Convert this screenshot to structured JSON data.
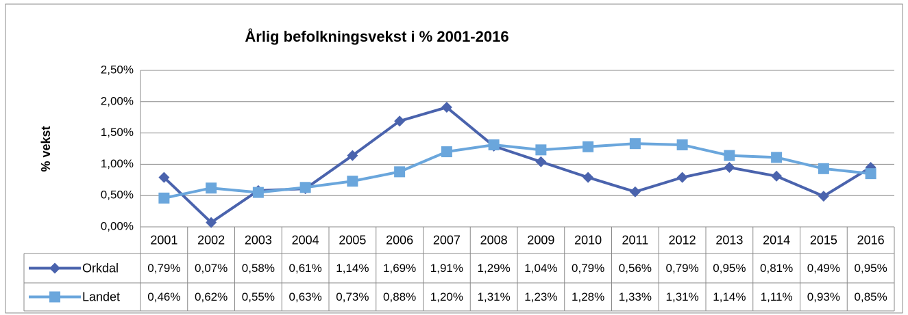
{
  "chart_data": {
    "type": "line",
    "title": "Årlig befolkningsvekst i % 2001-2016",
    "y_label": "% vekst",
    "categories": [
      "2001",
      "2002",
      "2003",
      "2004",
      "2005",
      "2006",
      "2007",
      "2008",
      "2009",
      "2010",
      "2011",
      "2012",
      "2013",
      "2014",
      "2015",
      "2016"
    ],
    "series": [
      {
        "name": "Orkdal",
        "color": "#4a63ad",
        "marker": "diamond",
        "values": [
          0.79,
          0.07,
          0.58,
          0.61,
          1.14,
          1.69,
          1.91,
          1.29,
          1.04,
          0.79,
          0.56,
          0.79,
          0.95,
          0.81,
          0.49,
          0.95
        ],
        "value_labels": [
          "0,79%",
          "0,07%",
          "0,58%",
          "0,61%",
          "1,14%",
          "1,69%",
          "1,91%",
          "1,29%",
          "1,04%",
          "0,79%",
          "0,56%",
          "0,79%",
          "0,95%",
          "0,81%",
          "0,49%",
          "0,95%"
        ]
      },
      {
        "name": "Landet",
        "color": "#6aa6dc",
        "marker": "square",
        "values": [
          0.46,
          0.62,
          0.55,
          0.63,
          0.73,
          0.88,
          1.2,
          1.31,
          1.23,
          1.28,
          1.33,
          1.31,
          1.14,
          1.11,
          0.93,
          0.85
        ],
        "value_labels": [
          "0,46%",
          "0,62%",
          "0,55%",
          "0,63%",
          "0,73%",
          "0,88%",
          "1,20%",
          "1,31%",
          "1,23%",
          "1,28%",
          "1,33%",
          "1,31%",
          "1,14%",
          "1,11%",
          "0,93%",
          "0,85%"
        ]
      }
    ],
    "ylim": [
      0,
      2.5
    ],
    "yticks": [
      {
        "value": 0,
        "label": "0,00%"
      },
      {
        "value": 0.5,
        "label": "0,50%"
      },
      {
        "value": 1,
        "label": "1,00%"
      },
      {
        "value": 1.5,
        "label": "1,50%"
      },
      {
        "value": 2,
        "label": "2,00%"
      },
      {
        "value": 2.5,
        "label": "2,50%"
      }
    ],
    "grid": true,
    "data_table": true
  }
}
